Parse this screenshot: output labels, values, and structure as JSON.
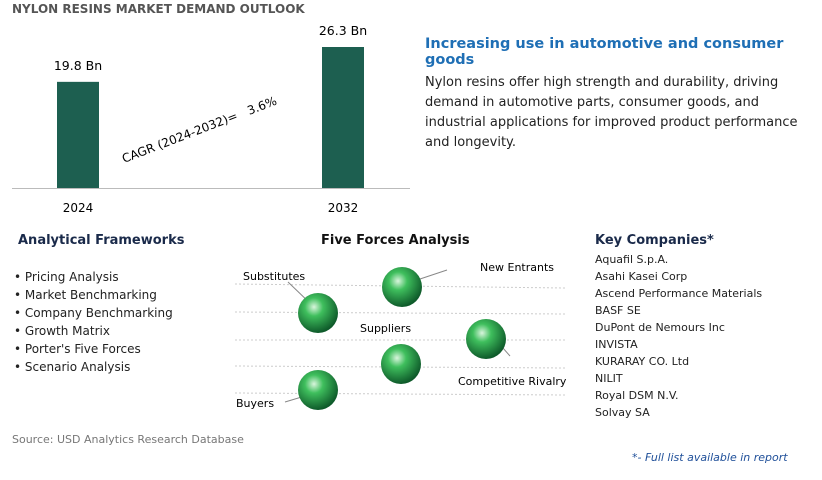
{
  "chart_data": {
    "type": "bar",
    "title": "NYLON RESINS MARKET DEMAND OUTLOOK",
    "categories": [
      "2024",
      "2032"
    ],
    "values": [
      19.8,
      26.3
    ],
    "value_labels": [
      "19.8 Bn",
      "26.3 Bn"
    ],
    "color": "#1d5f50",
    "annotation": "CAGR (2024-2032)=   3.6%"
  },
  "highlight": {
    "title": "Increasing use in automotive and consumer goods",
    "text": "Nylon resins offer high strength and durability, driving demand in automotive parts, consumer goods, and industrial applications for improved product performance and longevity."
  },
  "frameworks": {
    "title": "Analytical Frameworks",
    "items": [
      "Pricing Analysis",
      "Market Benchmarking",
      "Company Benchmarking",
      "Growth Matrix",
      "Porter's Five Forces",
      "Scenario Analysis"
    ]
  },
  "five_forces": {
    "title": "Five Forces Analysis",
    "nodes": [
      "Substitutes",
      "New Entrants",
      "Suppliers",
      "Competitive Rivalry",
      "Buyers"
    ]
  },
  "companies": {
    "title": "Key Companies*",
    "items": [
      "Aquafil S.p.A.",
      "Asahi Kasei Corp",
      "Ascend Performance Materials",
      "BASF SE",
      "DuPont de Nemours Inc",
      "INVISTA",
      "KURARAY CO. Ltd",
      "NILIT",
      "Royal DSM N.V.",
      "Solvay SA"
    ]
  },
  "source": "Source: USD Analytics Research Database",
  "footnote": "*- Full list available in report"
}
